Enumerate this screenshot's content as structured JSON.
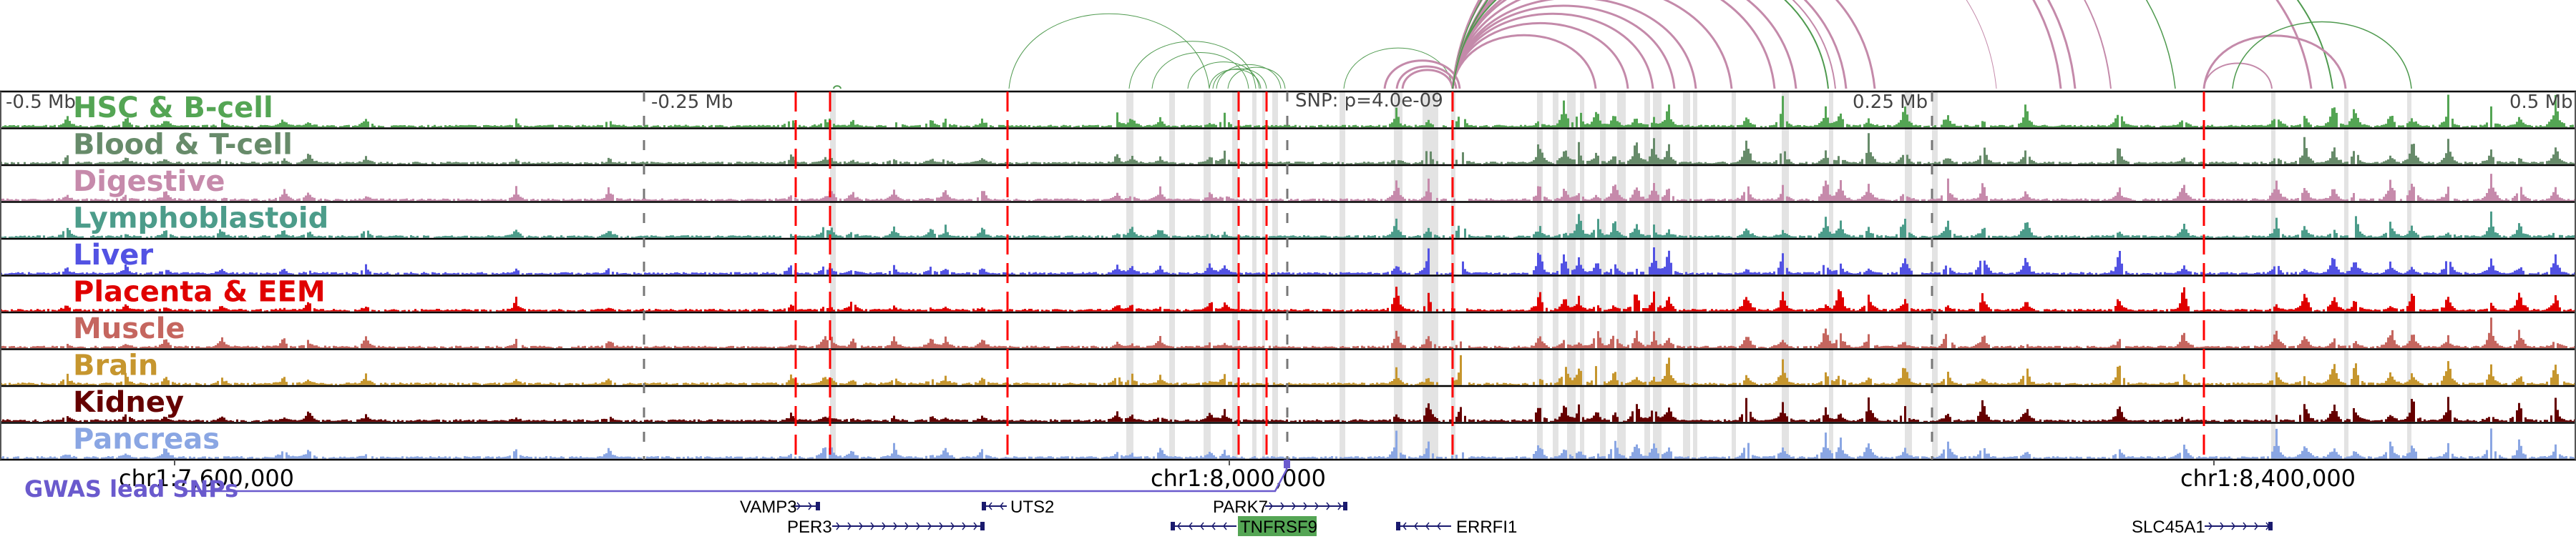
{
  "colors": {
    "frame": "#000000",
    "highlight": "#e3e3e3",
    "snp_line": "#ff0000",
    "scale_tick": "#777777",
    "gwas": "#6a5acd",
    "gene": "#1a1a6e",
    "gene_highlight_bg": "#54a554",
    "arc_green": "#4f9a4f",
    "arc_pink": "#c48aaa"
  },
  "scale_labels": {
    "left": "-0.5 Mb",
    "quarter_left": "-0.25 Mb",
    "quarter_right": "0.25 Mb",
    "right": "0.5 Mb"
  },
  "snp_label": "SNP: p=4.0e-09",
  "tracks": [
    {
      "name": "HSC & B-cell",
      "color": "#54a554"
    },
    {
      "name": "Blood & T-cell",
      "color": "#678b6a"
    },
    {
      "name": "Digestive",
      "color": "#c68aab"
    },
    {
      "name": "Lymphoblastoid",
      "color": "#4c9c8a"
    },
    {
      "name": "Liver",
      "color": "#5252e3"
    },
    {
      "name": "Placenta & EEM",
      "color": "#e00000"
    },
    {
      "name": "Muscle",
      "color": "#c5665f"
    },
    {
      "name": "Brain",
      "color": "#c6962e"
    },
    {
      "name": "Kidney",
      "color": "#650000"
    },
    {
      "name": "Pancreas",
      "color": "#8aa6e3"
    }
  ],
  "axis": {
    "ticks": [
      {
        "label": "chr1:7,600,000",
        "pos": 7600000
      },
      {
        "label": "chr1:8,000,000",
        "pos": 8000000
      },
      {
        "label": "chr1:8,400,000",
        "pos": 8400000
      }
    ]
  },
  "gwas": {
    "label": "GWAS lead SNPs"
  },
  "genes": [
    {
      "name": "VAMP3",
      "row": 0
    },
    {
      "name": "UTS2",
      "row": 0
    },
    {
      "name": "PARK7",
      "row": 0
    },
    {
      "name": "PER3",
      "row": 1
    },
    {
      "name": "TNFRSF9",
      "row": 1,
      "highlighted": true
    },
    {
      "name": "ERRFI1",
      "row": 1
    },
    {
      "name": "SLC45A1",
      "row": 1
    }
  ]
}
